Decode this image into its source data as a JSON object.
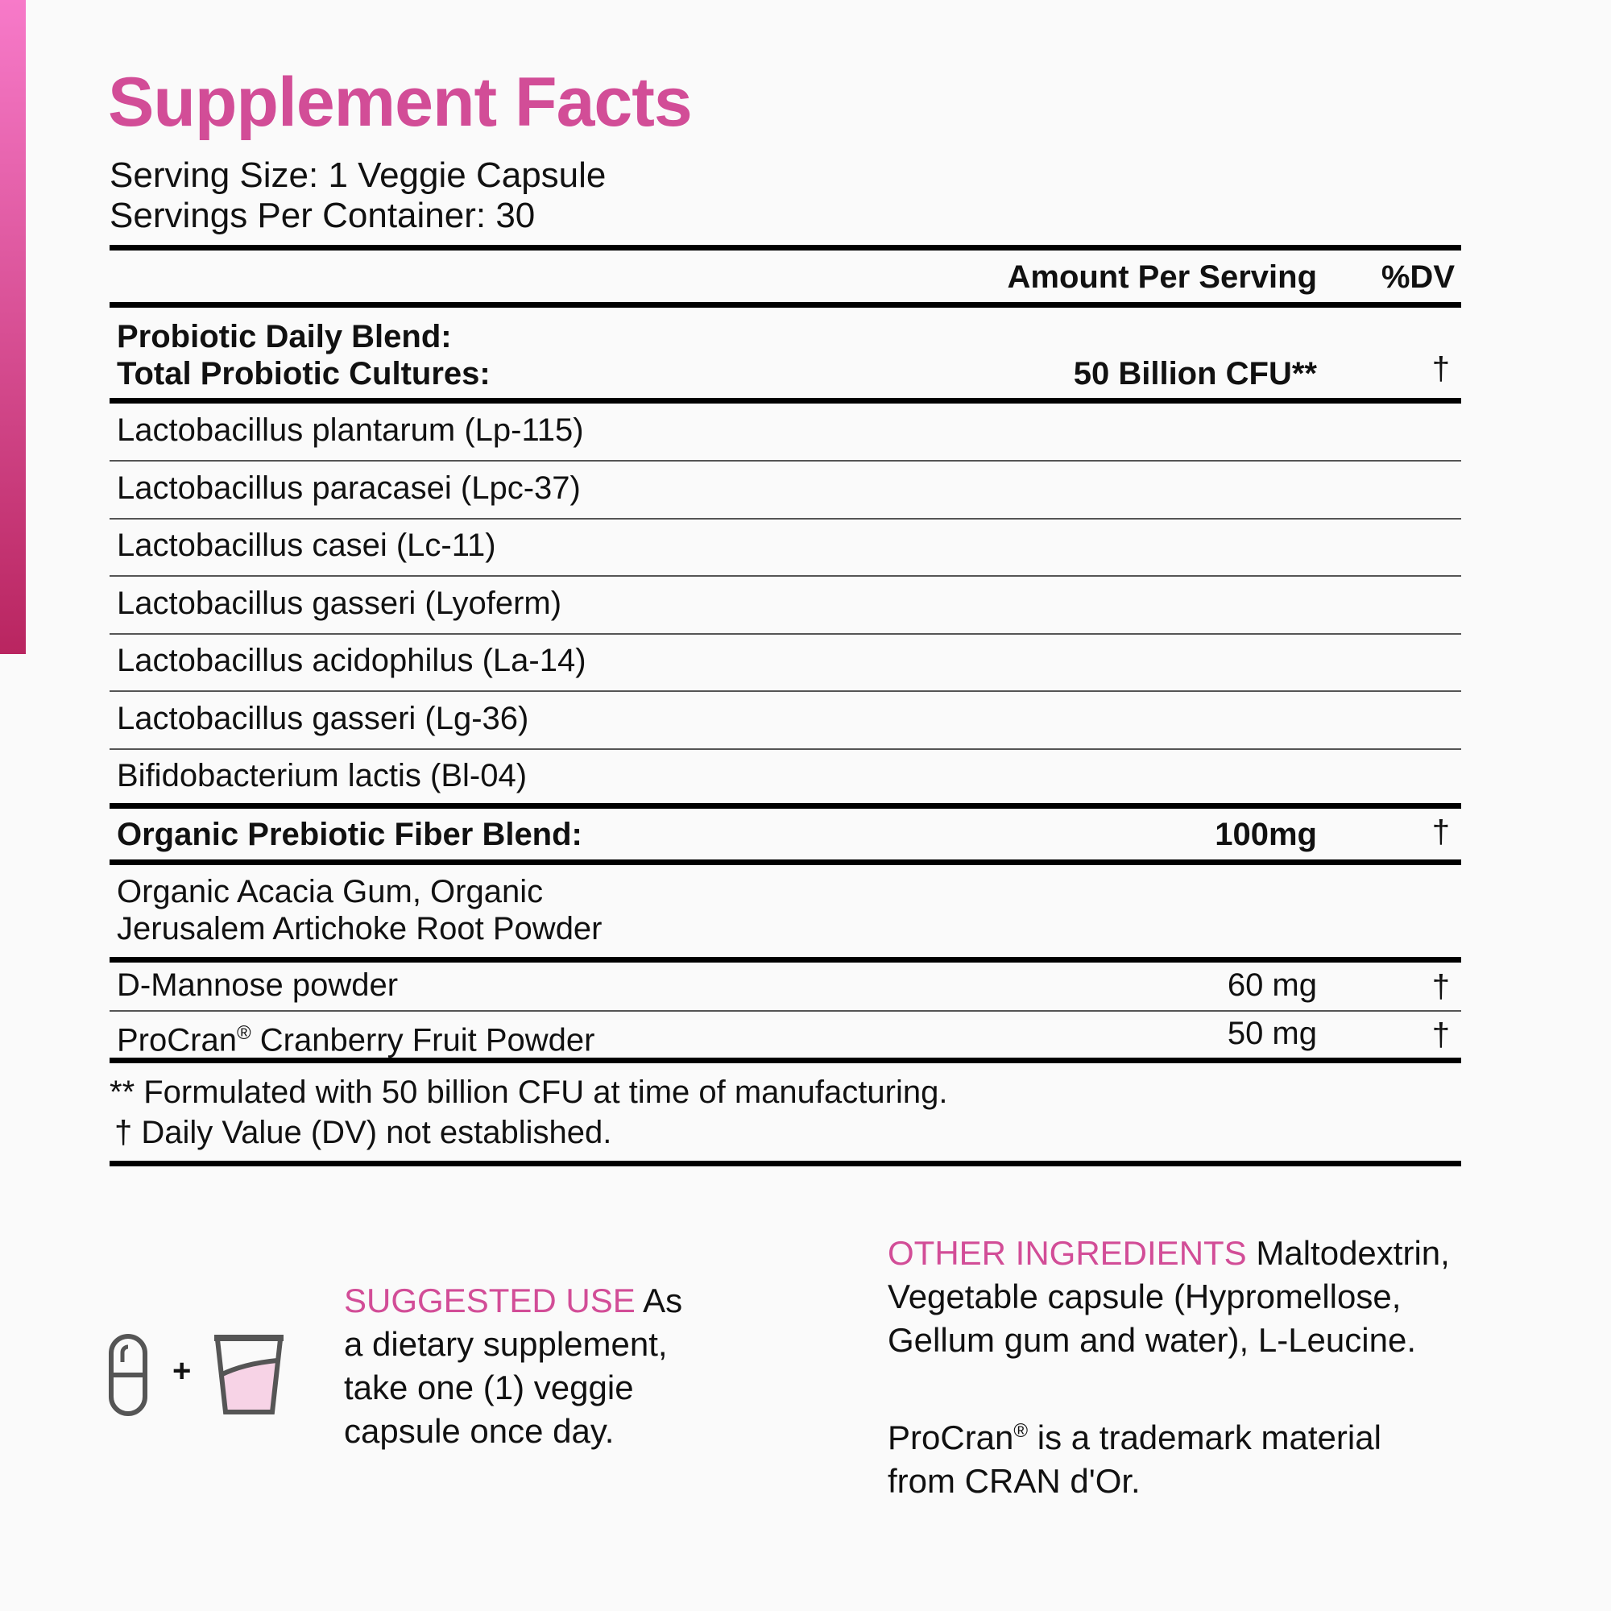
{
  "title": "Supplement Facts",
  "serving_size": "Serving Size: 1 Veggie Capsule",
  "servings_per_container": "Servings Per Container: 30",
  "header": {
    "amount": "Amount Per Serving",
    "dv": "%DV"
  },
  "probiotic": {
    "line1": "Probiotic Daily Blend:",
    "line2": "Total Probiotic Cultures:",
    "amount": "50 Billion CFU**",
    "dv": "†"
  },
  "strains": [
    "Lactobacillus plantarum (Lp-115)",
    "Lactobacillus paracasei (Lpc-37)",
    "Lactobacillus casei (Lc-11)",
    "Lactobacillus gasseri (Lyoferm)",
    "Lactobacillus acidophilus (La-14)",
    "Lactobacillus gasseri (Lg-36)",
    "Bifidobacterium lactis (Bl-04)"
  ],
  "prebiotic": {
    "label": "Organic Prebiotic Fiber Blend:",
    "amount": "100mg",
    "dv": "†",
    "line1": "Organic Acacia Gum, Organic",
    "line2": "Jerusalem Artichoke Root Powder"
  },
  "mannose": {
    "label": "D-Mannose powder",
    "amount": "60 mg",
    "dv": "†"
  },
  "procran": {
    "label": "ProCran",
    "reg": "®",
    "label_rest": " Cranberry Fruit Powder",
    "amount": "50 mg",
    "dv": "†"
  },
  "footnotes": [
    "** Formulated with 50 billion CFU at time of manufacturing.",
    "† Daily Value (DV) not established."
  ],
  "suggested_use": {
    "heading": "SUGGESTED USE",
    "lines": [
      "As",
      "a dietary supplement,",
      "take one (1) veggie",
      "capsule once day."
    ],
    "plus": "+"
  },
  "other_ingredients": {
    "heading": "OTHER INGREDIENTS",
    "lines": [
      "Maltodextrin,",
      "Vegetable capsule (Hypromellose,",
      "Gellum gum and water), L-Leucine."
    ]
  },
  "trademark": {
    "brand": "ProCran",
    "reg": "®",
    "line1_rest": " is a trademark material",
    "line2": "from CRAN d'Or."
  },
  "colors": {
    "accent": "#d24d97",
    "sidebar_top": "#f77ac9",
    "sidebar_bottom": "#b92560",
    "cup_fill": "#f7d3e6"
  },
  "icons": [
    "capsule-icon",
    "plus-icon",
    "glass-of-water-icon"
  ]
}
